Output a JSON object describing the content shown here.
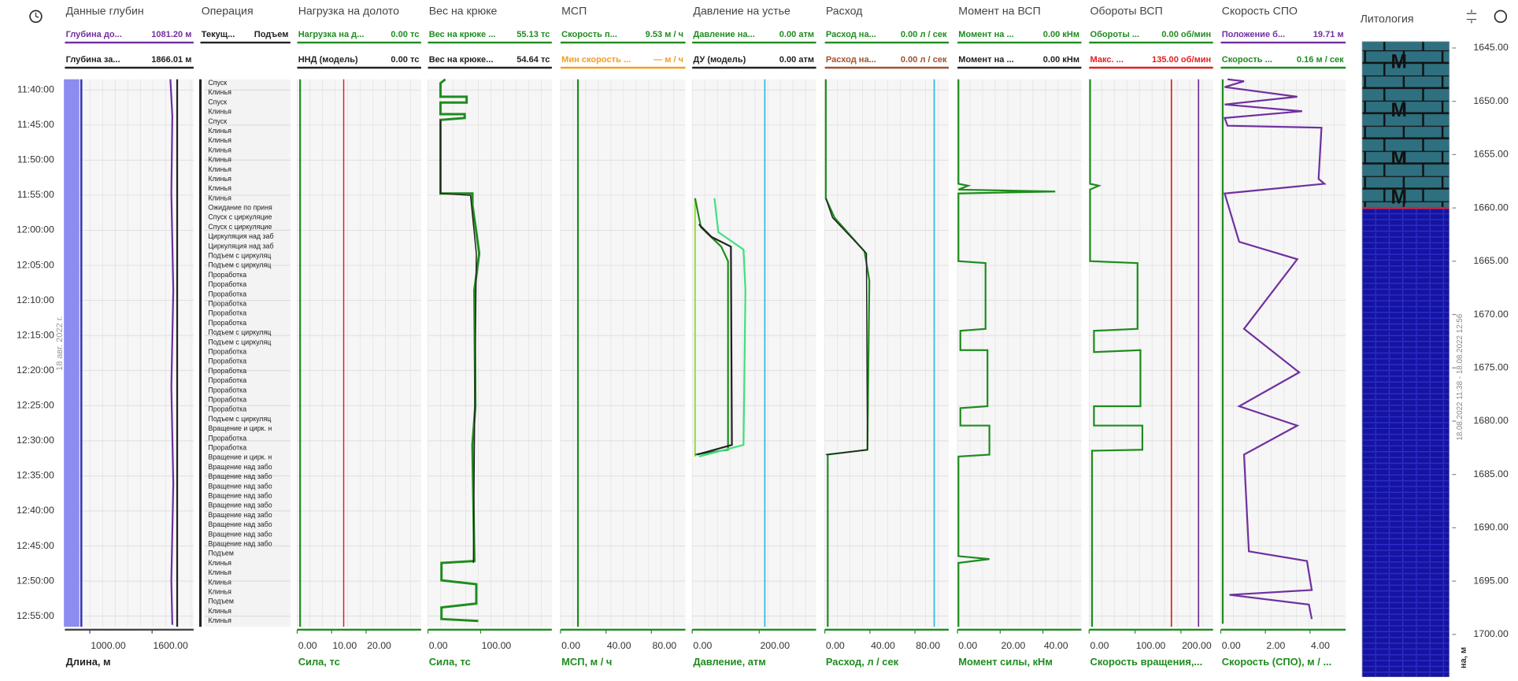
{
  "time_axis": {
    "ticks": [
      "11:40:00",
      "11:45:00",
      "11:50:00",
      "11:55:00",
      "12:00:00",
      "12:05:00",
      "12:10:00",
      "12:15:00",
      "12:20:00",
      "12:25:00",
      "12:30:00",
      "12:35:00",
      "12:40:00",
      "12:45:00",
      "12:50:00",
      "12:55:00"
    ],
    "date": "18 авг. 2022 г."
  },
  "tracks": [
    {
      "title": "Данные глубин",
      "headers": [
        {
          "name": "Глубина до...",
          "value": "1081.20 м",
          "color": "#7030a0"
        },
        {
          "name": "Глубина за...",
          "value": "1866.01 м",
          "color": "#222222"
        }
      ],
      "xlim": [
        760,
        2000
      ],
      "ticks": [
        {
          "value": 1000,
          "label": "1000.00"
        },
        {
          "value": 1600,
          "label": "1600.00"
        }
      ],
      "axis_label": "Длина, м",
      "axis_color": "#444444"
    },
    {
      "title": "Операция",
      "headers": [
        {
          "name": "Текущ...",
          "value": "Подъем",
          "color": "#222222"
        }
      ],
      "operations": [
        "Спуск",
        "Клинья",
        "Спуск",
        "Клинья",
        "Спуск",
        "Клинья",
        "Клинья",
        "Клинья",
        "Клинья",
        "Клинья",
        "Клинья",
        "Клинья",
        "Клинья",
        "Ожидание по приня",
        "Спуск с циркуляцие",
        "Спуск с циркуляцие",
        "Циркуляция над заб",
        "Циркуляция над заб",
        "Подъем с циркуляц",
        "Подъем с циркуляц",
        "Проработка",
        "Проработка",
        "Проработка",
        "Проработка",
        "Проработка",
        "Проработка",
        "Подъем с циркуляц",
        "Подъем с циркуляц",
        "Проработка",
        "Проработка",
        "Проработка",
        "Проработка",
        "Проработка",
        "Проработка",
        "Проработка",
        "Подъем с циркуляц",
        "Вращение и цирк. н",
        "Проработка",
        "Проработка",
        "Вращение и цирк. н",
        "Вращение над забо",
        "Вращение над забо",
        "Вращение над забо",
        "Вращение над забо",
        "Вращение над забо",
        "Вращение над забо",
        "Вращение над забо",
        "Вращение над забо",
        "Вращение над забо",
        "Подъем",
        "Клинья",
        "Клинья",
        "Клинья",
        "Клинья",
        "Подъем",
        "Клинья",
        "Клинья"
      ]
    },
    {
      "title": "Нагрузка на долото",
      "headers": [
        {
          "name": "Нагрузка на д...",
          "value": "0.00 тс",
          "color": "#1e8c1e"
        },
        {
          "name": "ННД (модель)",
          "value": "0.00 тс",
          "color": "#222222"
        }
      ],
      "xlim": [
        0,
        36
      ],
      "ticks": [
        {
          "value": 0,
          "label": "0.00"
        },
        {
          "value": 10,
          "label": "10.00"
        },
        {
          "value": 20,
          "label": "20.00"
        }
      ],
      "axis_label": "Сила, тс",
      "axis_color": "#1e8c1e"
    },
    {
      "title": "Вес на крюке",
      "headers": [
        {
          "name": "Вес на крюке ...",
          "value": "55.13 тс",
          "color": "#1e8c1e"
        },
        {
          "name": "Вес на крюке...",
          "value": "54.64 тс",
          "color": "#222222"
        }
      ],
      "xlim": [
        0,
        235
      ],
      "ticks": [
        {
          "value": 0,
          "label": "0.00"
        },
        {
          "value": 100,
          "label": "100.00"
        }
      ],
      "axis_label": "Сила, тс",
      "axis_color": "#1e8c1e"
    },
    {
      "title": "МСП",
      "headers": [
        {
          "name": "Скорость п...",
          "value": "9.53 м / ч",
          "color": "#1e8c1e"
        },
        {
          "name": "Мин скорость ...",
          "value": "— м / ч",
          "color": "#f0a020"
        }
      ],
      "xlim": [
        0,
        110
      ],
      "ticks": [
        {
          "value": 0,
          "label": "0.00"
        },
        {
          "value": 40,
          "label": "40.00"
        },
        {
          "value": 80,
          "label": "80.00"
        }
      ],
      "axis_label": "МСП, м / ч",
      "axis_color": "#1e8c1e"
    },
    {
      "title": "Давление на устье",
      "headers": [
        {
          "name": "Давление на...",
          "value": "0.00 атм",
          "color": "#1e8c1e"
        },
        {
          "name": "ДУ (модель)",
          "value": "0.00 атм",
          "color": "#222222"
        }
      ],
      "xlim": [
        0,
        370
      ],
      "ticks": [
        {
          "value": 0,
          "label": "0.00"
        },
        {
          "value": 200,
          "label": "200.00"
        }
      ],
      "axis_label": "Давление, атм",
      "axis_color": "#1e8c1e"
    },
    {
      "title": "Расход",
      "headers": [
        {
          "name": "Расход на...",
          "value": "0.00 л / сек",
          "color": "#1e8c1e"
        },
        {
          "name": "Расход на...",
          "value": "0.00 л / сек",
          "color": "#a0522d"
        }
      ],
      "xlim": [
        0,
        110
      ],
      "ticks": [
        {
          "value": 0,
          "label": "0.00"
        },
        {
          "value": 40,
          "label": "40.00"
        },
        {
          "value": 80,
          "label": "80.00"
        }
      ],
      "axis_label": "Расход, л / сек",
      "axis_color": "#1e8c1e"
    },
    {
      "title": "Момент на ВСП",
      "headers": [
        {
          "name": "Момент на ...",
          "value": "0.00 кНм",
          "color": "#1e8c1e"
        },
        {
          "name": "Момент на ...",
          "value": "0.00 кНм",
          "color": "#222222"
        }
      ],
      "xlim": [
        0,
        58
      ],
      "ticks": [
        {
          "value": 0,
          "label": "0.00"
        },
        {
          "value": 20,
          "label": "20.00"
        },
        {
          "value": 40,
          "label": "40.00"
        }
      ],
      "axis_label": "Момент силы, кНм",
      "axis_color": "#1e8c1e"
    },
    {
      "title": "Обороты ВСП",
      "headers": [
        {
          "name": "Обороты ...",
          "value": "0.00 об/мин",
          "color": "#1e8c1e"
        },
        {
          "name": "Макс. ...",
          "value": "135.00 об/мин",
          "color": "#e02020"
        }
      ],
      "xlim": [
        0,
        270
      ],
      "ticks": [
        {
          "value": 0,
          "label": "0.00"
        },
        {
          "value": 100,
          "label": "100.00"
        },
        {
          "value": 200,
          "label": "200.00"
        }
      ],
      "axis_label": "Скорость вращения,...",
      "axis_color": "#1e8c1e"
    },
    {
      "title": "Скорость СПО",
      "headers": [
        {
          "name": "Положение б...",
          "value": "19.71 м",
          "color": "#7030a0"
        },
        {
          "name": "Скорость ...",
          "value": "0.16 м / сек",
          "color": "#1e8c1e"
        }
      ],
      "xlim": [
        0,
        5.6
      ],
      "ticks": [
        {
          "value": 0,
          "label": "0.00"
        },
        {
          "value": 2,
          "label": "2.00"
        },
        {
          "value": 4,
          "label": "4.00"
        }
      ],
      "axis_label": "Скорость (СПО), м / ...",
      "axis_color": "#1e8c1e"
    }
  ],
  "lithology": {
    "title": "Литология",
    "ylim": [
      1644.4,
      1704
    ],
    "ticks": [
      {
        "value": 1645,
        "label": "1645.00"
      },
      {
        "value": 1650,
        "label": "1650.00"
      },
      {
        "value": 1655,
        "label": "1655.00"
      },
      {
        "value": 1660,
        "label": "1660.00"
      },
      {
        "value": 1665,
        "label": "1665.00"
      },
      {
        "value": 1670,
        "label": "1670.00"
      },
      {
        "value": 1675,
        "label": "1675.00"
      },
      {
        "value": 1680,
        "label": "1680.00"
      },
      {
        "value": 1685,
        "label": "1685.00"
      },
      {
        "value": 1690,
        "label": "1690.00"
      },
      {
        "value": 1695,
        "label": "1695.00"
      },
      {
        "value": 1700,
        "label": "1700.00"
      }
    ],
    "period": "18.08.2022 11:38 - 18.08.2022 12:56",
    "unit": "на, м",
    "rock_label": "М"
  }
}
